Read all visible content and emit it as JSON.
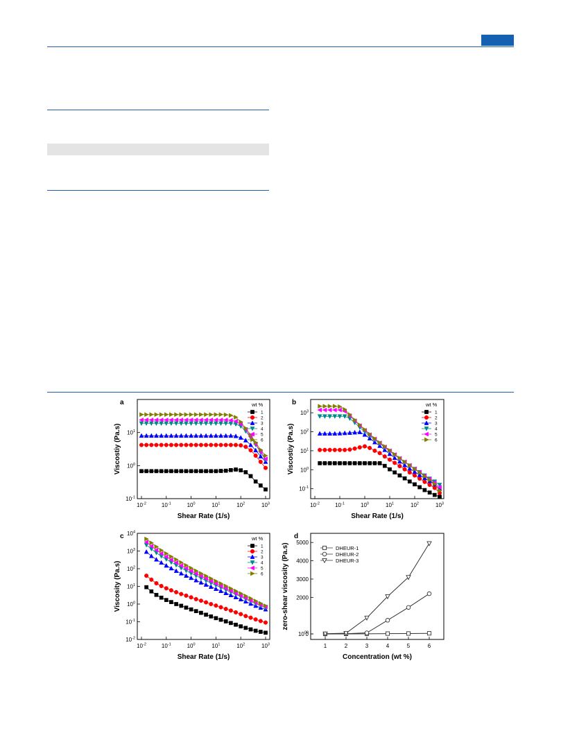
{
  "page": {
    "accent": "#1560b0",
    "rule_color": "#1f5fa8",
    "table_shade": "#e4e4e4"
  },
  "series_colors": {
    "1": "#000000",
    "2": "#ff0000",
    "3": "#0000ff",
    "4": "#008b8b",
    "5": "#ff00ff",
    "6": "#808000"
  },
  "chart_data": [
    {
      "panel": "a",
      "type": "line",
      "xscale": "log",
      "yscale": "log",
      "xlim": [
        0.01,
        1000
      ],
      "ylim": [
        0.1,
        100
      ],
      "xticks": [
        "10-2",
        "10-1",
        "100",
        "101",
        "102",
        "103"
      ],
      "yticks": [
        "10-1",
        "100",
        "101"
      ],
      "xlabel": "Shear Rate (1/s)",
      "ylabel": "Viscostiy (Pa.s)",
      "legend_title": "wt %",
      "legend_position": "top-right",
      "x": [
        0.01,
        0.0158,
        0.0251,
        0.0398,
        0.0631,
        0.1,
        0.158,
        0.251,
        0.398,
        0.631,
        1,
        1.58,
        2.51,
        3.98,
        6.31,
        10,
        15.8,
        25.1,
        39.8,
        63.1,
        100,
        158,
        251,
        398,
        631,
        1000
      ],
      "series": [
        {
          "name": "1",
          "marker": "square",
          "values": [
            0.68,
            0.68,
            0.68,
            0.68,
            0.68,
            0.68,
            0.68,
            0.68,
            0.68,
            0.68,
            0.68,
            0.68,
            0.68,
            0.68,
            0.68,
            0.68,
            0.69,
            0.7,
            0.73,
            0.76,
            0.72,
            0.63,
            0.48,
            0.33,
            0.25,
            0.19
          ]
        },
        {
          "name": "2",
          "marker": "circle",
          "values": [
            4.2,
            4.2,
            4.2,
            4.2,
            4.2,
            4.2,
            4.2,
            4.2,
            4.2,
            4.2,
            4.2,
            4.2,
            4.2,
            4.2,
            4.2,
            4.2,
            4.2,
            4.2,
            4.2,
            4.2,
            4.1,
            3.7,
            2.9,
            2.0,
            1.3,
            0.85
          ]
        },
        {
          "name": "3",
          "marker": "triangle-up",
          "values": [
            8,
            8,
            8,
            8,
            8,
            8,
            8,
            8,
            8,
            8,
            8,
            8,
            8,
            8,
            8,
            8,
            8,
            8,
            8,
            7.8,
            7.0,
            5.8,
            4.2,
            2.9,
            1.9,
            1.3
          ]
        },
        {
          "name": "4",
          "marker": "triangle-down",
          "values": [
            19,
            19,
            19,
            19,
            19,
            19,
            19,
            19,
            19,
            19,
            19,
            19,
            19,
            19,
            19,
            19,
            19,
            19,
            18.8,
            18,
            15.5,
            11,
            7,
            4.3,
            2.5,
            1.5
          ]
        },
        {
          "name": "5",
          "marker": "diamond-left",
          "values": [
            24,
            24,
            24,
            24,
            24,
            24,
            24,
            24,
            24,
            24,
            24,
            24,
            24,
            24,
            24,
            24,
            24,
            24,
            23.5,
            22,
            18,
            12.5,
            7.5,
            4.5,
            2.6,
            1.6
          ]
        },
        {
          "name": "6",
          "marker": "triangle-right",
          "values": [
            35,
            35,
            35,
            35,
            35,
            35,
            35,
            35,
            35,
            35,
            35,
            35,
            35,
            35,
            35,
            35,
            35,
            34.5,
            33,
            29,
            21,
            13.5,
            8.5,
            5,
            3,
            2
          ]
        }
      ]
    },
    {
      "panel": "b",
      "type": "line",
      "xscale": "log",
      "yscale": "log",
      "xlim": [
        0.01,
        1000
      ],
      "ylim": [
        0.03,
        5000
      ],
      "xticks": [
        "10-2",
        "10-1",
        "100",
        "101",
        "102",
        "103"
      ],
      "yticks": [
        "10-1",
        "100",
        "101",
        "102",
        "103"
      ],
      "xlabel": "Shear Rate (1/s)",
      "ylabel": "Viscostiy (Pa.s)",
      "legend_title": "wt %",
      "legend_position": "top-right",
      "x": [
        0.0158,
        0.0251,
        0.0398,
        0.0631,
        0.1,
        0.158,
        0.251,
        0.398,
        0.631,
        1,
        1.58,
        2.51,
        3.98,
        6.31,
        10,
        15.8,
        25.1,
        39.8,
        63.1,
        100,
        158,
        251,
        398,
        631,
        1000
      ],
      "series": [
        {
          "name": "1",
          "marker": "square",
          "values": [
            2.2,
            2.2,
            2.2,
            2.2,
            2.2,
            2.2,
            2.2,
            2.2,
            2.2,
            2.2,
            2.2,
            2.2,
            2.2,
            1.6,
            1.05,
            0.72,
            0.5,
            0.35,
            0.24,
            0.17,
            0.12,
            0.085,
            0.063,
            0.047,
            0.038
          ]
        },
        {
          "name": "2",
          "marker": "circle",
          "values": [
            11,
            11,
            11,
            11,
            11,
            11,
            11.5,
            13,
            15,
            17,
            14,
            10,
            7.5,
            5,
            3.4,
            2.3,
            1.55,
            1.05,
            0.72,
            0.5,
            0.34,
            0.23,
            0.16,
            0.11,
            0.06
          ]
        },
        {
          "name": "3",
          "marker": "triangle-up",
          "values": [
            80,
            80,
            80,
            80,
            82,
            85,
            88,
            92,
            96,
            70,
            45,
            28,
            18,
            11,
            6.8,
            4.2,
            2.7,
            1.75,
            1.15,
            0.78,
            0.53,
            0.36,
            0.25,
            0.17,
            0.1
          ]
        },
        {
          "name": "4",
          "marker": "triangle-down",
          "values": [
            650,
            650,
            650,
            650,
            650,
            650,
            500,
            300,
            170,
            100,
            60,
            38,
            24,
            15,
            9.5,
            6,
            3.8,
            2.5,
            1.65,
            1.1,
            0.75,
            0.5,
            0.34,
            0.24,
            0.16
          ]
        },
        {
          "name": "5",
          "marker": "diamond-left",
          "values": [
            1400,
            1400,
            1400,
            1400,
            1400,
            1200,
            700,
            380,
            210,
            120,
            70,
            42,
            26,
            16,
            10,
            6.3,
            4,
            2.6,
            1.7,
            1.12,
            0.74,
            0.48,
            0.32,
            0.21,
            0.12
          ]
        },
        {
          "name": "6",
          "marker": "triangle-right",
          "values": [
            2200,
            2200,
            2200,
            2200,
            2100,
            1500,
            800,
            420,
            230,
            130,
            75,
            44,
            27,
            17,
            10.5,
            6.5,
            4.1,
            2.6,
            1.7,
            1.1,
            0.7,
            0.45,
            0.29,
            0.18,
            0.08
          ]
        }
      ]
    },
    {
      "panel": "c",
      "type": "line",
      "xscale": "log",
      "yscale": "log",
      "xlim": [
        0.01,
        1000
      ],
      "ylim": [
        0.01,
        10000
      ],
      "xticks": [
        "10-2",
        "10-1",
        "100",
        "101",
        "102",
        "103"
      ],
      "yticks": [
        "10-2",
        "10-1",
        "100",
        "101",
        "102",
        "103",
        "104"
      ],
      "xlabel": "Shear Rate (1/s)",
      "ylabel": "Viscosity (Pa.s)",
      "legend_title": "wt %",
      "legend_position": "top-right",
      "x": [
        0.0158,
        0.0251,
        0.0398,
        0.0631,
        0.1,
        0.158,
        0.251,
        0.398,
        0.631,
        1,
        1.58,
        2.51,
        3.98,
        6.31,
        10,
        15.8,
        25.1,
        39.8,
        63.1,
        100,
        158,
        251,
        398,
        631,
        1000
      ],
      "series": [
        {
          "name": "1",
          "marker": "square",
          "values": [
            9,
            5.2,
            3.3,
            2.3,
            1.7,
            1.3,
            1.0,
            0.8,
            0.63,
            0.5,
            0.4,
            0.32,
            0.25,
            0.2,
            0.16,
            0.13,
            0.105,
            0.085,
            0.068,
            0.055,
            0.045,
            0.037,
            0.031,
            0.027,
            0.024
          ]
        },
        {
          "name": "2",
          "marker": "circle",
          "values": [
            40,
            24,
            15,
            10.5,
            7.8,
            6,
            4.7,
            3.7,
            3,
            2.4,
            1.9,
            1.55,
            1.25,
            1.0,
            0.82,
            0.66,
            0.53,
            0.43,
            0.34,
            0.27,
            0.21,
            0.17,
            0.135,
            0.11,
            0.09
          ]
        },
        {
          "name": "3",
          "marker": "triangle-up",
          "values": [
            900,
            520,
            330,
            220,
            150,
            105,
            75,
            54,
            40,
            30,
            22,
            16.5,
            12.5,
            9.5,
            7.2,
            5.5,
            4.2,
            3.2,
            2.45,
            1.85,
            1.4,
            1.05,
            0.8,
            0.62,
            0.5
          ]
        },
        {
          "name": "4",
          "marker": "triangle-down",
          "values": [
            2200,
            1300,
            800,
            510,
            340,
            230,
            160,
            110,
            78,
            55,
            40,
            29,
            21,
            15.5,
            11.5,
            8.5,
            6.3,
            4.7,
            3.5,
            2.6,
            1.9,
            1.4,
            1.05,
            0.8,
            0.62
          ]
        },
        {
          "name": "5",
          "marker": "diamond-left",
          "values": [
            3200,
            1900,
            1150,
            730,
            480,
            320,
            220,
            150,
            105,
            74,
            53,
            38,
            27.5,
            20,
            14.5,
            10.5,
            7.7,
            5.6,
            4.1,
            3,
            2.2,
            1.6,
            1.2,
            0.9,
            0.7
          ]
        },
        {
          "name": "6",
          "marker": "triangle-right",
          "values": [
            4800,
            2900,
            1750,
            1100,
            720,
            480,
            330,
            225,
            155,
            108,
            76,
            54,
            39,
            28,
            20,
            14.5,
            10.5,
            7.6,
            5.5,
            4,
            2.9,
            2.1,
            1.5,
            1.1,
            0.8
          ]
        }
      ]
    },
    {
      "panel": "d",
      "type": "line",
      "xscale": "linear",
      "yscale": "linear",
      "xlim": [
        0.5,
        6.5
      ],
      "ylim": [
        -300,
        5500
      ],
      "xticks": [
        "1",
        "2",
        "3",
        "4",
        "5",
        "6"
      ],
      "yticks": [
        "0",
        "1000",
        "2000",
        "3000",
        "4000",
        "5000"
      ],
      "xlabel": "Concentration (wt %)",
      "ylabel": "zero-shear viscosity (Pa.s)",
      "legend_position": "top-left",
      "x": [
        1,
        2,
        3,
        4,
        5,
        6
      ],
      "series": [
        {
          "name": "DHEUR-1",
          "marker": "square-open",
          "values": [
            0.7,
            4.2,
            8,
            19,
            24,
            35
          ]
        },
        {
          "name": "DHEUR-2",
          "marker": "circle-open",
          "values": [
            2,
            11,
            60,
            750,
            1450,
            2200
          ]
        },
        {
          "name": "DHEUR-3",
          "marker": "triangle-down-open",
          "values": [
            9,
            40,
            880,
            2050,
            3100,
            4950
          ]
        }
      ]
    }
  ]
}
